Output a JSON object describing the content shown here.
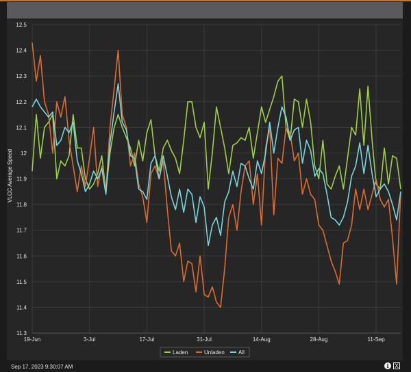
{
  "footer": {
    "timestamp": "Sep 17, 2023 9:30:07 AM",
    "info_icon": "info-icon",
    "export_icon": "excel-export-icon"
  },
  "chart_data": {
    "type": "line",
    "title": "",
    "xlabel": "",
    "ylabel": "VLCC Average Speed",
    "ylim": [
      11.3,
      12.5
    ],
    "yticks": [
      11.3,
      11.4,
      11.5,
      11.6,
      11.7,
      11.8,
      11.9,
      12,
      12.1,
      12.2,
      12.3,
      12.4,
      12.5
    ],
    "ytick_labels": [
      "11.3",
      "11.4",
      "11.5",
      "11.6",
      "11.7",
      "11.8",
      "11.9",
      "12",
      "12.1",
      "12.2",
      "12.3",
      "12.4",
      "12.5"
    ],
    "x_start": "19-Jun",
    "x_end": "17-Sep",
    "xtick_index": [
      0,
      14,
      28,
      42,
      56,
      70,
      84
    ],
    "xtick_labels": [
      "19-Jun",
      "3-Jul",
      "17-Jul",
      "31-Jul",
      "14-Aug",
      "28-Aug",
      "11-Sep"
    ],
    "x": [
      0,
      1,
      2,
      3,
      4,
      5,
      6,
      7,
      8,
      9,
      10,
      11,
      12,
      13,
      14,
      15,
      16,
      17,
      18,
      19,
      20,
      21,
      22,
      23,
      24,
      25,
      26,
      27,
      28,
      29,
      30,
      31,
      32,
      33,
      34,
      35,
      36,
      37,
      38,
      39,
      40,
      41,
      42,
      43,
      44,
      45,
      46,
      47,
      48,
      49,
      50,
      51,
      52,
      53,
      54,
      55,
      56,
      57,
      58,
      59,
      60,
      61,
      62,
      63,
      64,
      65,
      66,
      67,
      68,
      69,
      70,
      71,
      72,
      73,
      74,
      75,
      76,
      77,
      78,
      79,
      80,
      81,
      82,
      83,
      84,
      85,
      86,
      87,
      88,
      89,
      90
    ],
    "legend": [
      "Laden",
      "Unladen",
      "All"
    ],
    "legend_position": "bottom-center",
    "grid": true,
    "series": [
      {
        "name": "Laden",
        "color": "#9fcf45",
        "values": [
          11.93,
          12.15,
          11.98,
          12.1,
          12.12,
          12.15,
          11.9,
          11.97,
          11.95,
          11.99,
          12.15,
          12.02,
          12.02,
          11.9,
          11.86,
          11.88,
          11.92,
          11.99,
          11.85,
          12.0,
          12.1,
          12.15,
          12.1,
          12.06,
          12.02,
          11.95,
          12.05,
          11.97,
          12.08,
          12.13,
          11.99,
          11.93,
          12.02,
          12.05,
          12.01,
          11.98,
          11.92,
          12.05,
          12.2,
          12.2,
          12.1,
          12.06,
          12.12,
          11.86,
          12.0,
          12.18,
          12.1,
          12.02,
          11.92,
          12.03,
          12.04,
          12.06,
          12.05,
          12.1,
          11.98,
          12.08,
          12.18,
          12.12,
          12.17,
          12.22,
          12.28,
          12.3,
          12.1,
          12.05,
          12.21,
          12.2,
          12.1,
          12.21,
          12.12,
          11.95,
          11.9,
          12.05,
          11.88,
          11.86,
          11.91,
          11.95,
          11.86,
          11.98,
          12.1,
          12.07,
          12.25,
          12.03,
          12.26,
          12.05,
          11.88,
          11.86,
          12.02,
          11.88,
          11.99,
          11.98,
          11.86
        ]
      },
      {
        "name": "Unladen",
        "color": "#dd6d2f",
        "values": [
          12.43,
          12.28,
          12.38,
          12.2,
          12.15,
          12.0,
          12.2,
          12.14,
          12.22,
          12.05,
          11.95,
          11.85,
          11.95,
          11.87,
          11.98,
          12.1,
          11.87,
          11.95,
          11.85,
          12.1,
          12.25,
          12.4,
          12.15,
          12.1,
          11.95,
          12.0,
          11.88,
          11.83,
          11.73,
          11.92,
          11.95,
          11.9,
          11.97,
          11.78,
          11.62,
          11.6,
          11.65,
          11.5,
          11.58,
          11.57,
          11.46,
          11.6,
          11.45,
          11.44,
          11.48,
          11.42,
          11.4,
          11.55,
          11.75,
          11.8,
          11.7,
          11.85,
          11.95,
          11.97,
          11.8,
          11.92,
          11.72,
          12.02,
          12.1,
          11.76,
          11.98,
          11.96,
          12.1,
          12.08,
          11.97,
          12.0,
          11.84,
          11.9,
          11.84,
          11.82,
          11.72,
          11.7,
          11.64,
          11.58,
          11.54,
          11.49,
          11.65,
          11.66,
          11.72,
          11.86,
          11.78,
          11.86,
          11.78,
          11.84,
          11.9,
          11.82,
          11.79,
          11.82,
          11.67,
          11.49,
          11.85
        ]
      },
      {
        "name": "All",
        "color": "#77d6df",
        "values": [
          12.18,
          12.21,
          12.18,
          12.16,
          12.14,
          12.16,
          12.03,
          12.05,
          12.1,
          12.08,
          12.12,
          11.97,
          11.92,
          11.85,
          11.88,
          11.93,
          11.9,
          11.94,
          11.84,
          12.04,
          12.16,
          12.27,
          12.12,
          12.09,
          11.99,
          11.98,
          11.86,
          11.85,
          11.82,
          11.96,
          11.99,
          11.9,
          11.99,
          11.91,
          11.83,
          11.78,
          11.86,
          11.77,
          11.86,
          11.84,
          11.73,
          11.83,
          11.79,
          11.64,
          11.72,
          11.75,
          11.68,
          11.81,
          11.85,
          11.93,
          11.87,
          11.96,
          11.95,
          11.9,
          11.86,
          11.97,
          11.92,
          12.0,
          12.12,
          12.0,
          12.1,
          12.18,
          12.14,
          12.05,
          12.09,
          12.1,
          11.96,
          12.05,
          12.01,
          11.91,
          11.94,
          11.92,
          11.84,
          11.75,
          11.74,
          11.72,
          11.75,
          11.81,
          11.91,
          11.95,
          12.04,
          11.92,
          12.03,
          11.92,
          11.83,
          11.86,
          11.88,
          11.85,
          11.8,
          11.74,
          11.85
        ]
      }
    ]
  }
}
